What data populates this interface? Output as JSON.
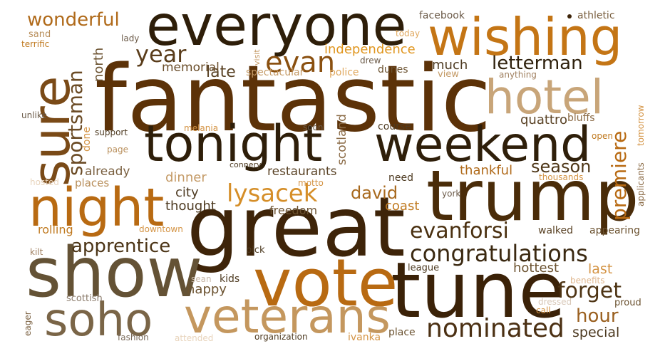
{
  "words": [
    {
      "text": "fantastic",
      "color": "#5c3208"
    },
    {
      "text": "great",
      "color": "#3e2409"
    },
    {
      "text": "tune",
      "color": "#3b2208"
    },
    {
      "text": "trump",
      "color": "#4a2c09"
    },
    {
      "text": "show",
      "color": "#645235"
    },
    {
      "text": "everyone",
      "color": "#2e1e09"
    },
    {
      "text": "vote",
      "color": "#b86a12"
    },
    {
      "text": "tonight",
      "color": "#2e1e09"
    },
    {
      "text": "weekend",
      "color": "#2f1f0a"
    },
    {
      "text": "wishing",
      "color": "#c47515"
    },
    {
      "text": "hotel",
      "color": "#c8a579"
    },
    {
      "text": "night",
      "color": "#b86a12"
    },
    {
      "text": "soho",
      "color": "#7a6547"
    },
    {
      "text": "veterans",
      "color": "#c4975e"
    },
    {
      "text": "sure",
      "color": "#7a4a17"
    },
    {
      "text": "nominated",
      "color": "#4b3013"
    },
    {
      "text": "congratulations",
      "color": "#3b2911"
    },
    {
      "text": "evan",
      "color": "#8a5010"
    },
    {
      "text": "lysacek",
      "color": "#d58e28"
    },
    {
      "text": "evanforsi",
      "color": "#4a3010"
    },
    {
      "text": "forget",
      "color": "#4e3414"
    },
    {
      "text": "apprentice",
      "color": "#4b3416"
    },
    {
      "text": "sportsman",
      "color": "#6b4b25"
    },
    {
      "text": "year",
      "color": "#5a3d1b"
    },
    {
      "text": "premiere",
      "color": "#b86a12"
    },
    {
      "text": "wonderful",
      "color": "#b06a1a"
    },
    {
      "text": "letterman",
      "color": "#2e200c"
    },
    {
      "text": "david",
      "color": "#a8691d"
    },
    {
      "text": "hour",
      "color": "#9a6020"
    },
    {
      "text": "season",
      "color": "#4e3617"
    },
    {
      "text": "late",
      "color": "#5a4326"
    },
    {
      "text": "memorial",
      "color": "#6b4e2b"
    },
    {
      "text": "independence",
      "color": "#e0961f"
    },
    {
      "text": "hottest",
      "color": "#6b5230"
    },
    {
      "text": "special",
      "color": "#4e3b22"
    },
    {
      "text": "restaurants",
      "color": "#5a4326"
    },
    {
      "text": "thankful",
      "color": "#b06a1a"
    },
    {
      "text": "dinner",
      "color": "#c49a66"
    },
    {
      "text": "happy",
      "color": "#6b5230"
    },
    {
      "text": "last",
      "color": "#d49445"
    },
    {
      "text": "coast",
      "color": "#c07a20"
    },
    {
      "text": "city",
      "color": "#4e3b22"
    },
    {
      "text": "thought",
      "color": "#4e3b22"
    },
    {
      "text": "freedom",
      "color": "#6b5230"
    },
    {
      "text": "quattro",
      "color": "#5a4326"
    },
    {
      "text": "much",
      "color": "#4e3b22"
    },
    {
      "text": "north",
      "color": "#6b5230"
    },
    {
      "text": "scotland",
      "color": "#8a6a45"
    },
    {
      "text": "already",
      "color": "#7a6040"
    },
    {
      "text": "places",
      "color": "#b88e5a"
    },
    {
      "text": "rolling",
      "color": "#c07a20"
    },
    {
      "text": "walked",
      "color": "#5a4326"
    },
    {
      "text": "appearing",
      "color": "#6b5230"
    },
    {
      "text": "dunes",
      "color": "#6b5230"
    },
    {
      "text": "spectacular",
      "color": "#c49a66"
    },
    {
      "text": "police",
      "color": "#e0a85e"
    },
    {
      "text": "view",
      "color": "#c49a66"
    },
    {
      "text": "facebook",
      "color": "#6b5a48"
    },
    {
      "text": "athletic",
      "color": "#7a6040"
    },
    {
      "text": "sand",
      "color": "#b88e5a"
    },
    {
      "text": "terrific",
      "color": "#c07a20"
    },
    {
      "text": "lady",
      "color": "#6b5a48"
    },
    {
      "text": "visit",
      "color": "#c49a66"
    },
    {
      "text": "today",
      "color": "#e0a85e"
    },
    {
      "text": "drew",
      "color": "#6b5a48"
    },
    {
      "text": "anything",
      "color": "#a08060"
    },
    {
      "text": "done",
      "color": "#d49445"
    },
    {
      "text": "unlike",
      "color": "#6b5a48"
    },
    {
      "text": "support",
      "color": "#4e3b22"
    },
    {
      "text": "melania",
      "color": "#d49445"
    },
    {
      "text": "soon",
      "color": "#6b5a48"
    },
    {
      "text": "course",
      "color": "#4e3b22"
    },
    {
      "text": "bluffs",
      "color": "#8a6a45"
    },
    {
      "text": "tomorrow",
      "color": "#d49445"
    },
    {
      "text": "open",
      "color": "#c07a20"
    },
    {
      "text": "page",
      "color": "#b88e5a"
    },
    {
      "text": "connery",
      "color": "#4e3b22"
    },
    {
      "text": "hosted",
      "color": "#e8d4bc"
    },
    {
      "text": "motto",
      "color": "#d49445"
    },
    {
      "text": "need",
      "color": "#4e3b22"
    },
    {
      "text": "thousands",
      "color": "#d49445"
    },
    {
      "text": "applicants",
      "color": "#8a6a45"
    },
    {
      "text": "york",
      "color": "#6b5a48"
    },
    {
      "text": "downtown",
      "color": "#d49445"
    },
    {
      "text": "kilt",
      "color": "#a08060"
    },
    {
      "text": "pick",
      "color": "#4e3b22"
    },
    {
      "text": "league",
      "color": "#4e3b22"
    },
    {
      "text": "benefits",
      "color": "#e0b890"
    },
    {
      "text": "sean",
      "color": "#c8b8a8"
    },
    {
      "text": "kids",
      "color": "#4e3b22"
    },
    {
      "text": "scottish",
      "color": "#8a7a6a"
    },
    {
      "text": "eager",
      "color": "#7a6040"
    },
    {
      "text": "dressed",
      "color": "#d8c8b8"
    },
    {
      "text": "call",
      "color": "#d49445"
    },
    {
      "text": "proud",
      "color": "#6b5230"
    },
    {
      "text": "fashion",
      "color": "#7a6a5a"
    },
    {
      "text": "attended",
      "color": "#e8d4bc"
    },
    {
      "text": "organization",
      "color": "#4e3b22"
    },
    {
      "text": "ivanka",
      "color": "#d49445"
    },
    {
      "text": "place",
      "color": "#6b5230"
    }
  ]
}
